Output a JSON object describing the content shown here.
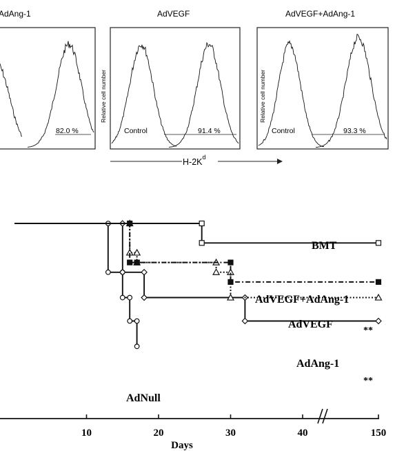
{
  "top_panels": [
    {
      "title": "AdAng-1",
      "percent_label": "82.0 %",
      "control_label": "",
      "ylabel": ""
    },
    {
      "title": "AdVEGF",
      "percent_label": "91.4 %",
      "control_label": "Control",
      "ylabel": "Relative cell number"
    },
    {
      "title": "AdVEGF+AdAng-1",
      "percent_label": "93.3 %",
      "control_label": "Control",
      "ylabel": "Relative cell number"
    }
  ],
  "flow_axis_label": {
    "base": "H-2K",
    "superscript": "d"
  },
  "chart_data": {
    "type": "line",
    "subtype": "step",
    "xlabel": "Days",
    "x_ticks": [
      "10",
      "20",
      "30",
      "40",
      "150"
    ],
    "x_break": "between 40 and 150",
    "series": [
      {
        "name": "BMT",
        "line_style": "solid",
        "marker": "open-square",
        "x": [
          0,
          26,
          26,
          150
        ],
        "y": [
          100,
          100,
          90,
          90
        ]
      },
      {
        "name": "AdVEGF+AdAng-1",
        "line_style": "dash-dot",
        "marker": "filled-square",
        "x": [
          0,
          16,
          16,
          17,
          17,
          30,
          30,
          150
        ],
        "y": [
          100,
          100,
          80,
          80,
          80,
          80,
          70,
          70
        ]
      },
      {
        "name": "AdVEGF",
        "line_style": "dotted",
        "marker": "open-triangle",
        "x": [
          0,
          16,
          16,
          17,
          17,
          28,
          28,
          30,
          30,
          150
        ],
        "y": [
          100,
          100,
          85,
          85,
          80,
          80,
          75,
          75,
          62,
          62
        ]
      },
      {
        "name": "AdAng-1",
        "line_style": "solid",
        "marker": "open-diamond",
        "x": [
          0,
          15,
          15,
          18,
          18,
          32,
          32,
          150
        ],
        "y": [
          100,
          100,
          75,
          75,
          62,
          62,
          50,
          50
        ]
      },
      {
        "name": "AdNull",
        "line_style": "solid",
        "marker": "open-circle",
        "x": [
          0,
          13,
          13,
          15,
          15,
          16,
          16,
          17,
          17
        ],
        "y": [
          100,
          100,
          75,
          75,
          62,
          62,
          50,
          50,
          37
        ]
      }
    ],
    "annotations": [
      {
        "text": "**",
        "series": "AdVEGF"
      },
      {
        "text": "**",
        "series": "AdAng-1"
      }
    ]
  }
}
